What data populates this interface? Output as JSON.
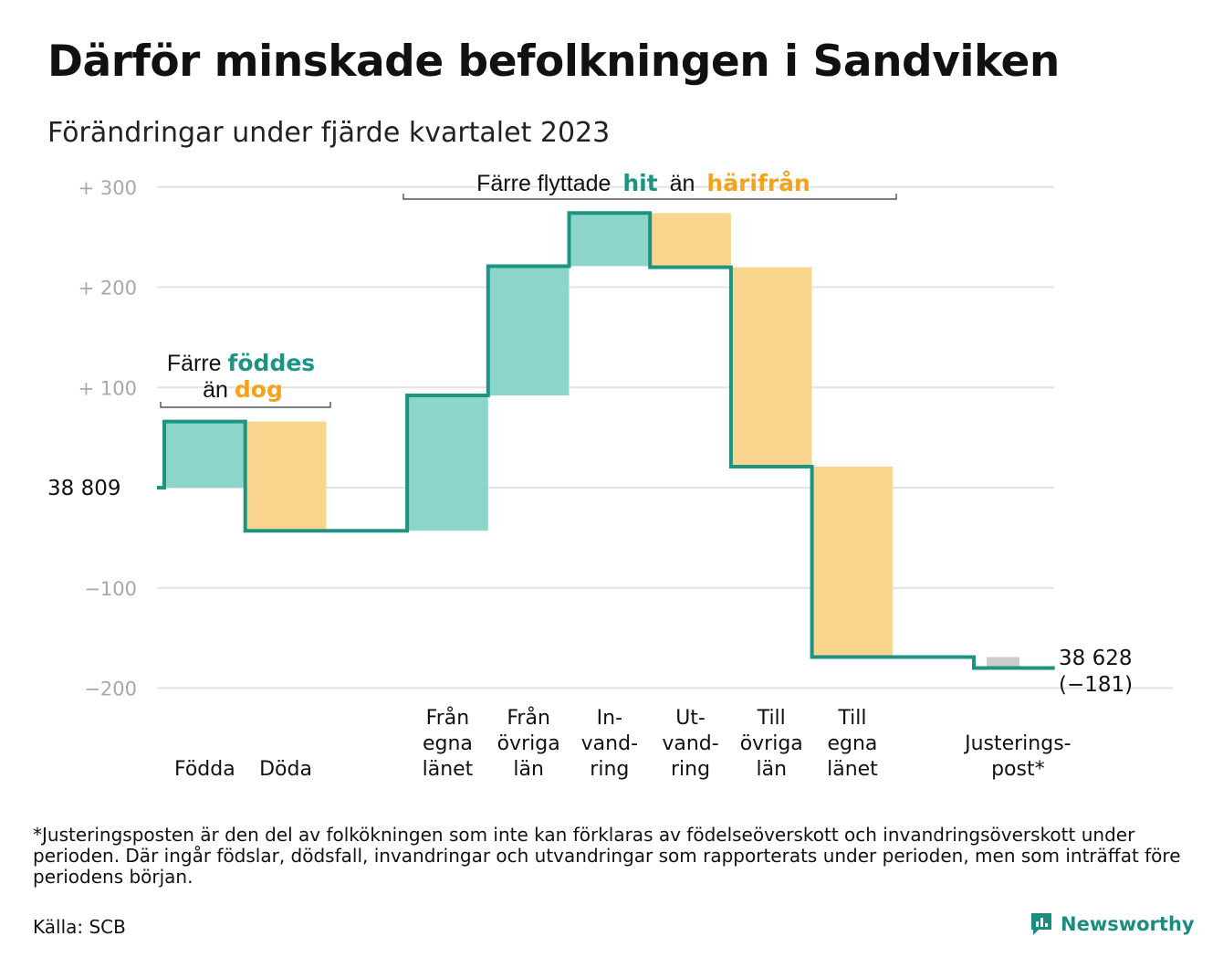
{
  "header": {
    "title": "Därför minskade befolkningen i Sandviken",
    "subtitle": "Förändringar under fjärde kvartalet 2023"
  },
  "annotations": {
    "births_deaths": {
      "line1_prefix": "Färre",
      "line1_bold": "föddes",
      "line2_prefix": "än",
      "line2_bold": "dog"
    },
    "migration": {
      "prefix": "Färre flyttade",
      "bold1": "hit",
      "middle": "än",
      "bold2": "härifrån"
    }
  },
  "start_label": "38  809",
  "end_label": {
    "value": "38 628",
    "change": "(−181)"
  },
  "footnote": "*Justeringsposten är den del av folkökningen som inte kan förklaras av födelseöverskott och invandringsöverskott under perioden. Där ingår födslar, dödsfall, invandringar och utvandringar som rapporterats under perioden, men som inträffat före periodens början.",
  "source": "Källa: SCB",
  "brand": {
    "name": "Newsworthy",
    "icon": "newsworthy-logo-icon"
  },
  "colors": {
    "line": "#1d9483",
    "positive": "#8dd5cb",
    "negative": "#f9d58d",
    "adjustment": "#cccccc",
    "grid": "#e3e3e3",
    "tick": "#a8a8a8",
    "bold_teal": "#1d9483",
    "bold_orange": "#f5a21b"
  },
  "chart_data": {
    "type": "waterfall",
    "start_value": 38809,
    "end_value": 38628,
    "total_change": -181,
    "ylim": [
      -210,
      300
    ],
    "y_ticks": [
      {
        "value": 300,
        "label": "+  300"
      },
      {
        "value": 200,
        "label": "+  200"
      },
      {
        "value": 100,
        "label": "+  100"
      },
      {
        "value": 0,
        "label": ""
      },
      {
        "value": -100,
        "label": "−100"
      },
      {
        "value": -200,
        "label": "−200"
      }
    ],
    "steps": [
      {
        "label_lines": [
          "Födda"
        ],
        "delta": 66,
        "kind": "positive"
      },
      {
        "label_lines": [
          "Döda"
        ],
        "delta": -109,
        "kind": "negative"
      },
      {
        "label_lines": [],
        "delta": 0,
        "kind": "spacer"
      },
      {
        "label_lines": [
          "Från",
          "egna",
          "länet"
        ],
        "delta": 135,
        "kind": "positive"
      },
      {
        "label_lines": [
          "Från",
          "övriga",
          "län"
        ],
        "delta": 129,
        "kind": "positive"
      },
      {
        "label_lines": [
          "In-",
          "vand-",
          "ring"
        ],
        "delta": 53,
        "kind": "positive"
      },
      {
        "label_lines": [
          "Ut-",
          "vand-",
          "ring"
        ],
        "delta": -54,
        "kind": "negative"
      },
      {
        "label_lines": [
          "Till",
          "övriga",
          "län"
        ],
        "delta": -199,
        "kind": "negative"
      },
      {
        "label_lines": [
          "Till",
          "egna",
          "länet"
        ],
        "delta": -190,
        "kind": "negative"
      },
      {
        "label_lines": [],
        "delta": 0,
        "kind": "spacer"
      },
      {
        "label_lines": [
          "Justerings-",
          "post*"
        ],
        "delta": -11,
        "kind": "adjustment"
      }
    ]
  }
}
